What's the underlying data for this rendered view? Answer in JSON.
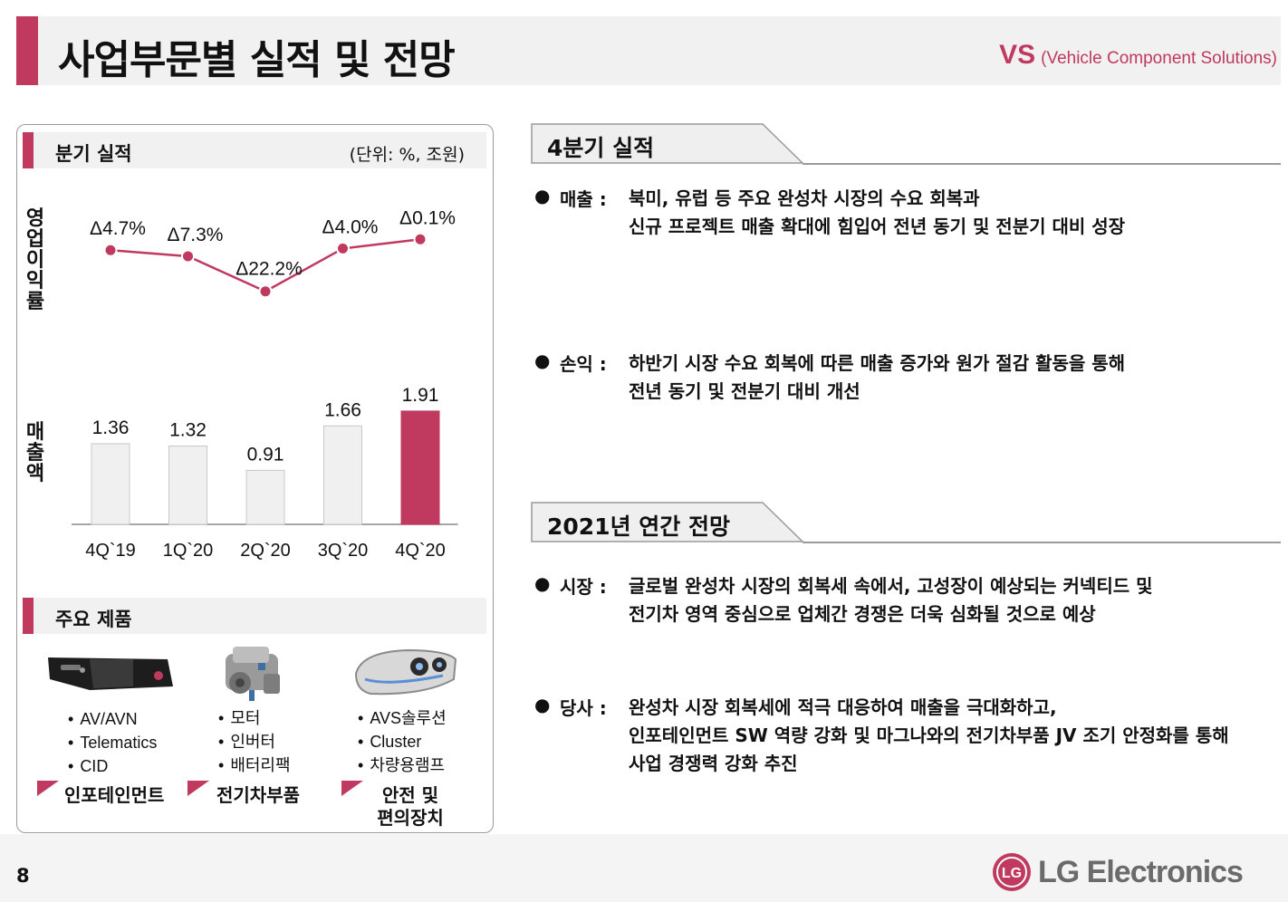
{
  "header": {
    "title": "사업부문별 실적 및 전망",
    "division_code": "VS",
    "division_desc": "(Vehicle Component Solutions)"
  },
  "quarterly": {
    "title": "분기 실적",
    "unit": "(단위: %, 조원)",
    "margin_label": "영업이익률",
    "sales_label": "매출액"
  },
  "chart_data": {
    "type": "bar+line",
    "categories": [
      "4Q`19",
      "1Q`20",
      "2Q`20",
      "3Q`20",
      "4Q`20"
    ],
    "series": [
      {
        "name": "매출액",
        "type": "bar",
        "values": [
          1.36,
          1.32,
          0.91,
          1.66,
          1.91
        ],
        "highlight_index": 4
      },
      {
        "name": "영업이익률",
        "type": "line",
        "values": [
          -4.7,
          -7.3,
          -22.2,
          -4.0,
          -0.1
        ],
        "labels": [
          "Δ4.7%",
          "Δ7.3%",
          "Δ22.2%",
          "Δ4.0%",
          "Δ0.1%"
        ]
      }
    ],
    "bar_ylim": [
      0,
      2.0
    ],
    "line_ylim": [
      -30,
      0
    ],
    "colors": {
      "accent": "#c0395f",
      "bar": "#f0f0f0",
      "bar_border": "#c8c8c8",
      "axis": "#888888"
    }
  },
  "products": {
    "title": "주요 제품",
    "groups": [
      {
        "icon": "infotainment-unit-image",
        "items": [
          "AV/AVN",
          "Telematics",
          "CID"
        ],
        "category": "인포테인먼트"
      },
      {
        "icon": "ev-motor-image",
        "items": [
          "모터",
          "인버터",
          "배터리팩"
        ],
        "category": "전기차부품"
      },
      {
        "icon": "headlamp-image",
        "items": [
          "AVS솔루션",
          "Cluster",
          "차량용램프"
        ],
        "category_lines": [
          "안전 및",
          "편의장치"
        ]
      }
    ]
  },
  "q4": {
    "title": "4분기 실적",
    "bullets": [
      {
        "key": "매출 :",
        "lines": [
          "북미, 유럽 등 주요 완성차 시장의 수요 회복과",
          "신규 프로젝트 매출 확대에 힘입어 전년 동기 및 전분기 대비 성장"
        ]
      },
      {
        "key": "손익 :",
        "lines": [
          "하반기 시장 수요 회복에 따른 매출 증가와 원가 절감 활동을 통해",
          "전년 동기 및 전분기 대비 개선"
        ]
      }
    ]
  },
  "outlook": {
    "title": "2021년 연간 전망",
    "bullets": [
      {
        "key": "시장 :",
        "lines": [
          "글로벌 완성차 시장의 회복세 속에서, 고성장이 예상되는 커넥티드 및",
          "전기차 영역 중심으로 업체간 경쟁은 더욱 심화될 것으로 예상"
        ]
      },
      {
        "key": "당사 :",
        "lines": [
          "완성차 시장 회복세에 적극 대응하여 매출을 극대화하고,",
          "인포테인먼트 SW 역량 강화 및 마그나와의 전기차부품 JV 조기 안정화를 통해",
          "사업 경쟁력 강화 추진"
        ]
      }
    ]
  },
  "footer": {
    "page_number": "8",
    "logo_text": "LG Electronics",
    "logo_mark": "LG"
  }
}
